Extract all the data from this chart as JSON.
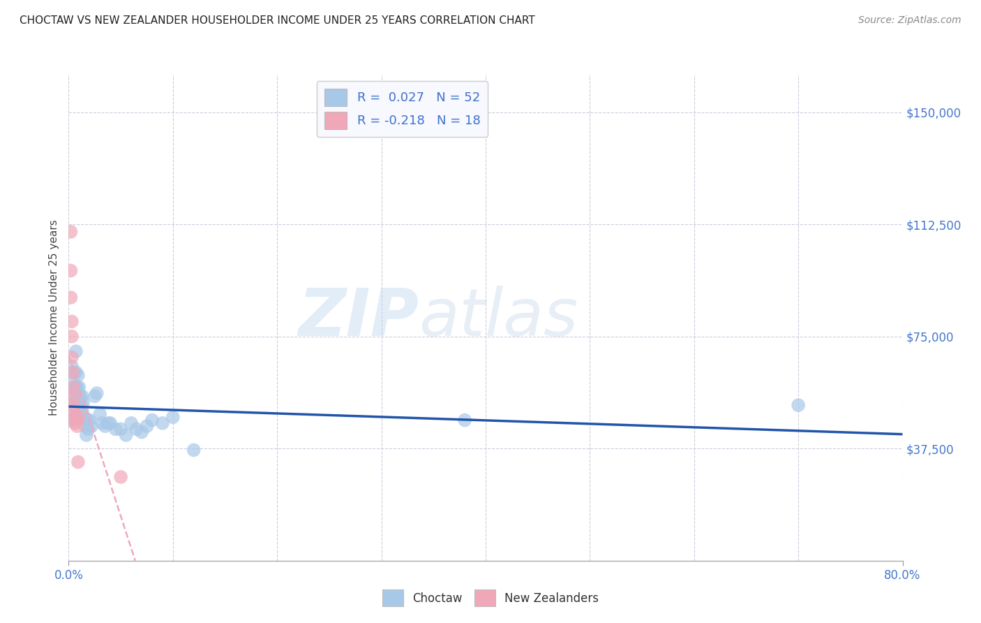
{
  "title": "CHOCTAW VS NEW ZEALANDER HOUSEHOLDER INCOME UNDER 25 YEARS CORRELATION CHART",
  "source": "Source: ZipAtlas.com",
  "ylabel": "Householder Income Under 25 years",
  "ytick_labels": [
    "$37,500",
    "$75,000",
    "$112,500",
    "$150,000"
  ],
  "ytick_values": [
    37500,
    75000,
    112500,
    150000
  ],
  "xlim": [
    0.0,
    0.8
  ],
  "ylim": [
    0,
    162500
  ],
  "watermark_zip": "ZIP",
  "watermark_atlas": "atlas",
  "choctaw_R": 0.027,
  "choctaw_N": 52,
  "nz_R": -0.218,
  "nz_N": 18,
  "choctaw_color": "#a8c8e8",
  "nz_color": "#f0a8b8",
  "choctaw_line_color": "#2255aa",
  "nz_line_color": "#f0a8b8",
  "choctaw_x": [
    0.002,
    0.003,
    0.003,
    0.004,
    0.004,
    0.005,
    0.005,
    0.005,
    0.005,
    0.006,
    0.006,
    0.007,
    0.007,
    0.007,
    0.008,
    0.008,
    0.009,
    0.009,
    0.01,
    0.01,
    0.011,
    0.012,
    0.013,
    0.013,
    0.014,
    0.015,
    0.016,
    0.017,
    0.018,
    0.019,
    0.02,
    0.022,
    0.025,
    0.027,
    0.03,
    0.032,
    0.035,
    0.038,
    0.04,
    0.045,
    0.05,
    0.055,
    0.06,
    0.065,
    0.07,
    0.075,
    0.08,
    0.09,
    0.1,
    0.12,
    0.38,
    0.7
  ],
  "choctaw_y": [
    47000,
    65000,
    55000,
    60000,
    52000,
    63000,
    57000,
    52000,
    48000,
    58000,
    53000,
    70000,
    63000,
    58000,
    58000,
    54000,
    62000,
    56000,
    58000,
    53000,
    55000,
    52000,
    55000,
    50000,
    53000,
    48000,
    45000,
    42000,
    47000,
    44000,
    47000,
    45000,
    55000,
    56000,
    49000,
    46000,
    45000,
    46000,
    46000,
    44000,
    44000,
    42000,
    46000,
    44000,
    43000,
    45000,
    47000,
    46000,
    48000,
    37000,
    47000,
    52000
  ],
  "nz_x": [
    0.002,
    0.002,
    0.002,
    0.003,
    0.003,
    0.003,
    0.004,
    0.004,
    0.005,
    0.005,
    0.005,
    0.006,
    0.006,
    0.007,
    0.008,
    0.009,
    0.01,
    0.05
  ],
  "nz_y": [
    110000,
    97000,
    88000,
    80000,
    75000,
    68000,
    63000,
    58000,
    55000,
    52000,
    50000,
    48000,
    46000,
    47000,
    45000,
    33000,
    48000,
    28000
  ],
  "background_color": "#ffffff",
  "grid_color": "#ccccdd",
  "legend_facecolor": "#f8f8ff",
  "legend_edgecolor": "#cccccc",
  "title_color": "#222222",
  "source_color": "#888888",
  "ylabel_color": "#444444",
  "tick_label_color": "#4477cc",
  "right_tick_color": "#4477cc"
}
